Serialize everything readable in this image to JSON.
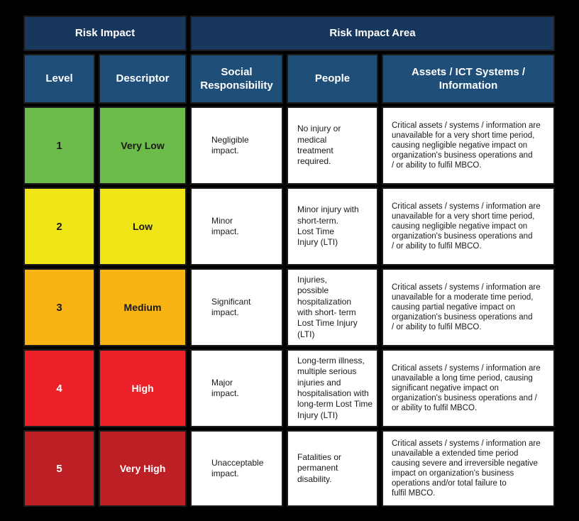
{
  "page": {
    "background": "#000000"
  },
  "colors": {
    "header_primary": "#17375C",
    "header_secondary": "#1F4E79",
    "header_text": "#FFFFFF",
    "cell_background": "#FFFFFF",
    "body_text": "#1A1A1A"
  },
  "table": {
    "header_groups": [
      {
        "label": "Risk Impact"
      },
      {
        "label": "Risk Impact Area"
      }
    ],
    "columns": [
      {
        "label": "Level"
      },
      {
        "label": "Descriptor"
      },
      {
        "label": "Social\nResponsibility"
      },
      {
        "label": "People"
      },
      {
        "label": "Assets / ICT Systems /\nInformation"
      }
    ],
    "rows": [
      {
        "level": "1",
        "descriptor": "Very Low",
        "row_color": "#6CBC4B",
        "level_text_color": "#1A1A1A",
        "social": "Negligible\nimpact.",
        "people": "No injury or\nmedical\ntreatment\nrequired.",
        "assets": "Critical assets / systems / information are\nunavailable for a very short time period,\ncausing negligible negative impact on\norganization's business operations and\n/ or ability to fulfil MBCO."
      },
      {
        "level": "2",
        "descriptor": "Low",
        "row_color": "#F0E517",
        "level_text_color": "#1A1A1A",
        "social": "Minor\nimpact.",
        "people": "Minor injury with\nshort-term.\nLost Time\nInjury (LTI)",
        "assets": "Critical assets / systems / information are\nunavailable for a very short time period,\ncausing negligible negative impact on\norganization's business operations and\n/ or ability to fulfil MBCO."
      },
      {
        "level": "3",
        "descriptor": "Medium",
        "row_color": "#F9B313",
        "level_text_color": "#1A1A1A",
        "social": "Significant\nimpact.",
        "people": "Injuries,\npossible\nhospitalization\nwith short- term\nLost Time Injury (LTI)",
        "assets": "Critical assets / systems / information are\nunavailable for a moderate time period,\ncausing partial negative impact on\norganization's business operations and\n/ or ability to fulfil MBCO."
      },
      {
        "level": "4",
        "descriptor": "High",
        "row_color": "#EC2127",
        "level_text_color": "#FFFFFF",
        "social": "Major\nimpact.",
        "people": "Long-term illness,\nmultiple serious\ninjuries and\nhospitalisation with\nlong-term Lost Time\nInjury (LTI)",
        "assets": "Critical assets / systems / information are\nunavailable a long time period, causing\nsignificant negative impact on\norganization's business operations and /\nor ability to fulfil MBCO."
      },
      {
        "level": "5",
        "descriptor": "Very High",
        "row_color": "#BC2025",
        "level_text_color": "#FFFFFF",
        "social": "Unacceptable\nimpact.",
        "people": "Fatalities or\npermanent\ndisability.",
        "assets": "Critical assets / systems / information are\nunavailable a extended time period\n causing severe and irreversible negative\nimpact on organization's business\noperations and/or total failure to\nfulfil MBCO."
      }
    ]
  }
}
